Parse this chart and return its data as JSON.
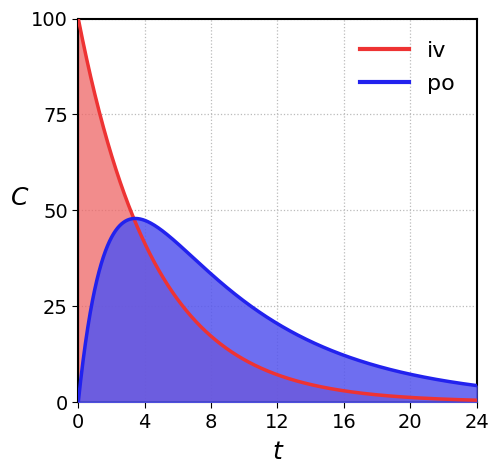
{
  "title": "",
  "xlabel": "t",
  "ylabel": "C",
  "xlim": [
    0,
    24
  ],
  "ylim": [
    0,
    100
  ],
  "xticks": [
    0,
    4,
    8,
    12,
    16,
    20,
    24
  ],
  "yticks": [
    0,
    25,
    50,
    75,
    100
  ],
  "iv_color": "#EE3333",
  "iv_fill_color": "#EE6666",
  "po_color": "#2222EE",
  "po_fill_color": "#5555EE",
  "iv_fill_alpha": 0.75,
  "po_fill_alpha": 0.85,
  "iv_C0": 100,
  "iv_ke": 0.22,
  "po_ka": 0.55,
  "po_ke": 0.13,
  "po_scale": 98.0,
  "legend_iv": "iv",
  "legend_po": "po",
  "background_color": "#FFFFFF",
  "grid_color": "#BBBBBB",
  "axis_linewidth": 1.5,
  "curve_linewidth": 2.5,
  "xlabel_fontsize": 18,
  "ylabel_fontsize": 18,
  "tick_fontsize": 14,
  "legend_fontsize": 16
}
